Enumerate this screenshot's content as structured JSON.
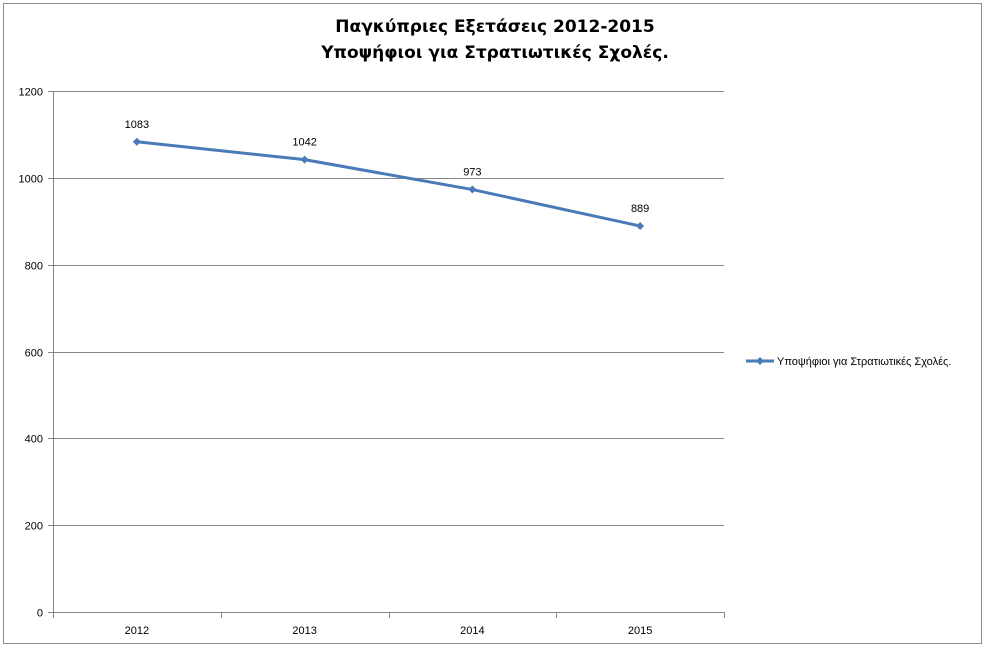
{
  "chart_data": {
    "type": "line",
    "title": [
      "Παγκύπριες Εξετάσεις 2012-2015",
      "Υποψήφιοι για Στρατιωτικές Σχολές."
    ],
    "categories": [
      "2012",
      "2013",
      "2014",
      "2015"
    ],
    "series": [
      {
        "name": "Υποψήφιοι για Στρατιωτικές Σχολές.",
        "values": [
          1083,
          1042,
          973,
          889
        ],
        "color": "#4a7ab7"
      }
    ],
    "ylim": [
      0,
      1200
    ],
    "yticks": [
      0,
      200,
      400,
      600,
      800,
      1000,
      1200
    ],
    "grid": "horizontal",
    "legend_position": "right",
    "data_labels": true
  }
}
